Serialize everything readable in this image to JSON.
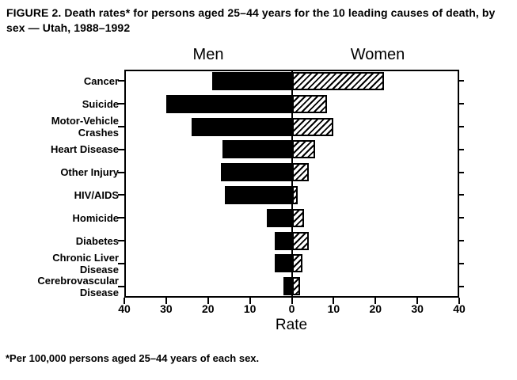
{
  "title": "FIGURE 2. Death rates* for persons aged 25–44 years for the 10 leading causes of death, by sex — Utah, 1988–1992",
  "footnote": "*Per 100,000 persons aged 25–44 years of each sex.",
  "chart_data": {
    "type": "bar",
    "orientation": "horizontal-diverging",
    "title": "Death rates for persons aged 25-44 years for the 10 leading causes of death, by sex, Utah, 1988-1992",
    "group_headers": [
      "Men",
      "Women"
    ],
    "categories": [
      "Cancer",
      "Suicide",
      "Motor-Vehicle\nCrashes",
      "Heart Disease",
      "Other Injury",
      "HIV/AIDS",
      "Homicide",
      "Diabetes",
      "Chronic Liver\nDisease",
      "Cerebrovascular\nDisease"
    ],
    "series": [
      {
        "name": "Men",
        "style": "solid-black",
        "direction": "left",
        "values": [
          19,
          30,
          24,
          16.5,
          17,
          16,
          6,
          4,
          4,
          2
        ]
      },
      {
        "name": "Women",
        "style": "diagonal-hatch",
        "direction": "right",
        "values": [
          22,
          8.5,
          10,
          5.5,
          4,
          1.5,
          3,
          4,
          2.5,
          2
        ]
      }
    ],
    "xlabel": "Rate",
    "xlim": [
      -40,
      40
    ],
    "tick_values": [
      -40,
      -30,
      -20,
      -10,
      0,
      10,
      20,
      30,
      40
    ],
    "tick_labels": [
      "40",
      "30",
      "20",
      "10",
      "0",
      "10",
      "20",
      "30",
      "40"
    ],
    "grid": false,
    "legend_position": "none",
    "colors": {
      "men_bar": "#000000",
      "women_bar_lines": "#000000",
      "background": "#ffffff",
      "frame": "#000000"
    }
  }
}
